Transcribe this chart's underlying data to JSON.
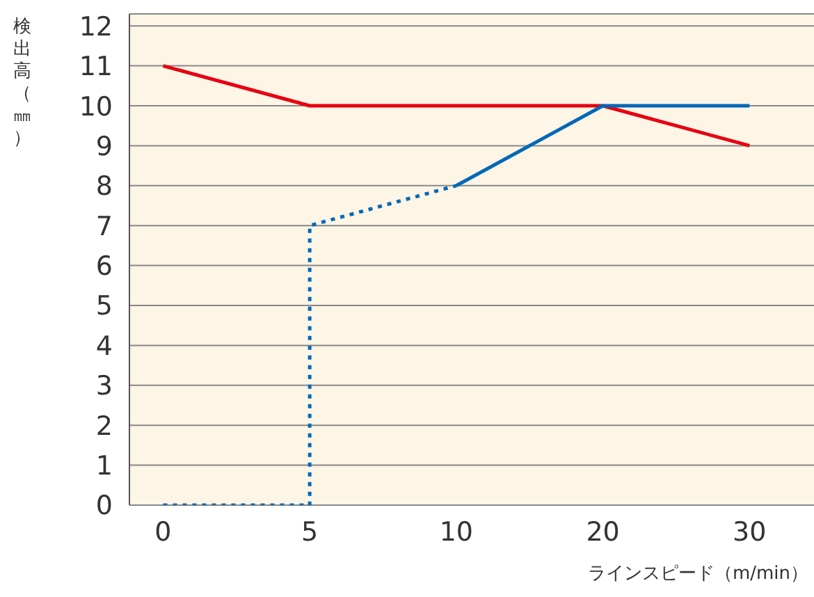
{
  "chart_data": {
    "type": "line",
    "xlabel": "ラインスピード（m/min）",
    "ylabel": "検出高（㎜）",
    "categories": [
      "0",
      "5",
      "10",
      "20",
      "30"
    ],
    "ylim": [
      0,
      12.3
    ],
    "yticks": [
      0,
      1,
      2,
      3,
      4,
      5,
      6,
      7,
      8,
      9,
      10,
      11,
      12
    ],
    "grid": "y",
    "marker": "none",
    "series": [
      {
        "color": "#e60012",
        "values": [
          11,
          10,
          10,
          10,
          9
        ],
        "line_style": "solid"
      },
      {
        "color": "#0068b7",
        "x": [
          "10",
          "20",
          "30"
        ],
        "values": [
          8,
          10,
          10
        ],
        "line_style": "solid"
      },
      {
        "color": "#0068b7",
        "x": [
          "0",
          "5",
          "5",
          "10"
        ],
        "values": [
          0,
          0,
          7,
          8
        ],
        "line_style": "dotted"
      }
    ]
  }
}
